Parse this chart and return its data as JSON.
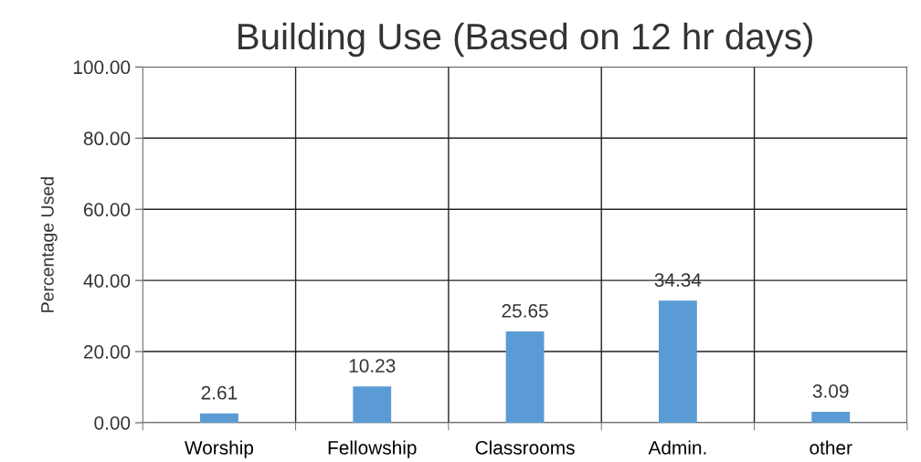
{
  "chart_data": {
    "type": "bar",
    "title": "Building Use (Based on 12 hr days)",
    "ylabel": "Percentage Used",
    "categories": [
      "Worship",
      "Fellowship",
      "Classrooms",
      "Admin.",
      "other"
    ],
    "values": [
      2.61,
      10.23,
      25.65,
      34.34,
      3.09
    ],
    "color": "#5b9bd5",
    "ylim": [
      0,
      100
    ],
    "yticks": [
      {
        "value": 0,
        "label": "0.00"
      },
      {
        "value": 20,
        "label": "20.00"
      },
      {
        "value": 40,
        "label": "40.00"
      },
      {
        "value": 60,
        "label": "60.00"
      },
      {
        "value": 80,
        "label": "80.00"
      },
      {
        "value": 100,
        "label": "100.00"
      }
    ],
    "grid": true,
    "data_labels": true
  }
}
